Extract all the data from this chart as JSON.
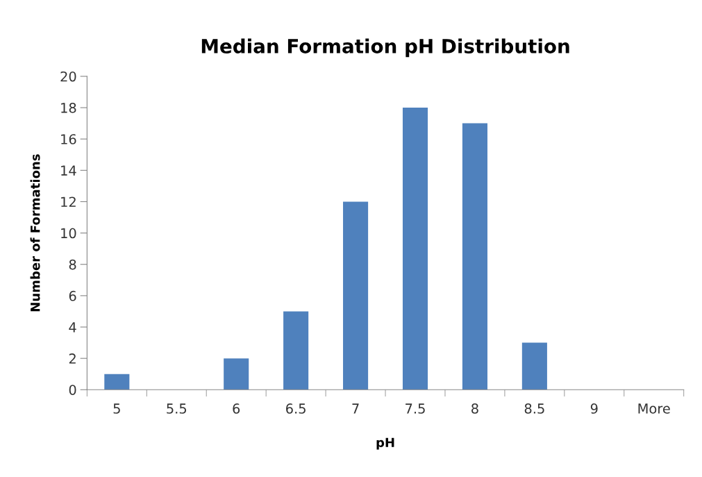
{
  "chart_data": {
    "type": "bar",
    "title": "Median Formation pH Distribution",
    "xlabel": "pH",
    "ylabel": "Number of Formations",
    "categories": [
      "5",
      "5.5",
      "6",
      "6.5",
      "7",
      "7.5",
      "8",
      "8.5",
      "9",
      "More"
    ],
    "values": [
      1,
      0,
      2,
      5,
      12,
      18,
      17,
      3,
      0,
      0
    ],
    "color": "#4f81bd",
    "ylim": [
      0,
      20
    ],
    "yticks": [
      0,
      2,
      4,
      6,
      8,
      10,
      12,
      14,
      16,
      18,
      20
    ],
    "grid": false,
    "legend": false
  }
}
